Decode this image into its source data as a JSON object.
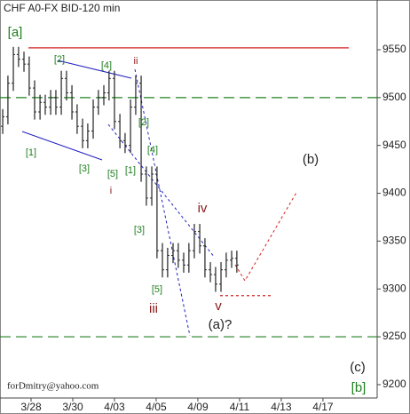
{
  "chart_data": {
    "type": "ohlc",
    "title": "CHF A0-FX BID-120 min",
    "footer": "forDmitry@yahoo.com",
    "color": "#222222",
    "xlim": [
      -1.49,
      16.6
    ],
    "xticks": [
      {
        "value": 0,
        "label": "3/28"
      },
      {
        "value": 2,
        "label": "3/30"
      },
      {
        "value": 4,
        "label": "4/03"
      },
      {
        "value": 6,
        "label": "4/05"
      },
      {
        "value": 8,
        "label": "4/09"
      },
      {
        "value": 10,
        "label": "4/11"
      },
      {
        "value": 12,
        "label": "4/13"
      },
      {
        "value": 14,
        "label": "4/17"
      }
    ],
    "ylim": [
      9186,
      9602
    ],
    "yticks": [
      9200,
      9250,
      9300,
      9350,
      9400,
      9450,
      9500,
      9550
    ],
    "x": [
      -1.36,
      -1.11,
      -0.85,
      -0.6,
      -0.34,
      -0.09,
      0.17,
      0.43,
      0.68,
      0.94,
      1.19,
      1.45,
      1.7,
      1.96,
      2.21,
      2.47,
      2.72,
      2.98,
      3.23,
      3.49,
      3.74,
      4.0,
      4.26,
      4.51,
      4.77,
      5.02,
      5.28,
      5.53,
      5.79,
      6.04,
      6.3,
      6.55,
      6.81,
      7.06,
      7.32,
      7.57,
      7.83,
      8.09,
      8.34,
      8.6,
      8.85,
      9.11,
      9.36,
      9.62,
      9.87
    ],
    "open": [
      9470,
      9480,
      9515,
      9545,
      9540,
      9535,
      9510,
      9485,
      9495,
      9490,
      9500,
      9490,
      9520,
      9505,
      9485,
      9470,
      9455,
      9465,
      9490,
      9500,
      9505,
      9520,
      9475,
      9455,
      9450,
      9490,
      9515,
      9420,
      9395,
      9420,
      9340,
      9320,
      9335,
      9340,
      9330,
      9325,
      9340,
      9360,
      9345,
      9320,
      9315,
      9305,
      9320,
      9330,
      9332
    ],
    "high": [
      9488,
      9523,
      9553,
      9553,
      9548,
      9543,
      9518,
      9503,
      9503,
      9508,
      9508,
      9528,
      9528,
      9513,
      9493,
      9478,
      9473,
      9498,
      9508,
      9513,
      9528,
      9528,
      9483,
      9463,
      9498,
      9523,
      9523,
      9428,
      9428,
      9428,
      9348,
      9343,
      9348,
      9348,
      9338,
      9348,
      9368,
      9368,
      9353,
      9328,
      9323,
      9328,
      9338,
      9340,
      9340
    ],
    "low": [
      9462,
      9472,
      9507,
      9532,
      9527,
      9502,
      9477,
      9477,
      9482,
      9482,
      9482,
      9482,
      9497,
      9477,
      9462,
      9447,
      9447,
      9457,
      9482,
      9492,
      9497,
      9467,
      9447,
      9442,
      9442,
      9482,
      9412,
      9387,
      9387,
      9332,
      9312,
      9312,
      9327,
      9322,
      9317,
      9317,
      9332,
      9337,
      9312,
      9307,
      9297,
      9297,
      9312,
      9322,
      9317
    ],
    "close": [
      9480,
      9515,
      9545,
      9540,
      9535,
      9510,
      9485,
      9495,
      9490,
      9500,
      9490,
      9520,
      9505,
      9485,
      9470,
      9455,
      9465,
      9490,
      9500,
      9505,
      9520,
      9475,
      9455,
      9450,
      9490,
      9515,
      9420,
      9395,
      9420,
      9340,
      9320,
      9335,
      9340,
      9330,
      9325,
      9340,
      9360,
      9345,
      9320,
      9315,
      9305,
      9320,
      9330,
      9332,
      9325
    ],
    "levels": [
      {
        "value": 9552,
        "color": "#d22020",
        "dashed": false
      },
      {
        "value": 9500,
        "color": "#208020",
        "dashed": true
      },
      {
        "value": 9250,
        "color": "#208020",
        "dashed": true
      },
      {
        "value": 9293,
        "color": "#d22020",
        "dashed": true
      }
    ],
    "annotations": [
      {
        "text": "[a]",
        "color": "#208020"
      },
      {
        "text": "[2]",
        "color": "#208020"
      },
      {
        "text": "[4]",
        "color": "#208020"
      },
      {
        "text": "[1]",
        "color": "#208020"
      },
      {
        "text": "[3]",
        "color": "#208020"
      },
      {
        "text": "ii",
        "color": "#8b1a1a"
      },
      {
        "text": "[2]",
        "color": "#208020"
      },
      {
        "text": "[4]",
        "color": "#208020"
      },
      {
        "text": "[5]",
        "color": "#208020"
      },
      {
        "text": "[1]",
        "color": "#208020"
      },
      {
        "text": "i",
        "color": "#8b1a1a"
      },
      {
        "text": "[3]",
        "color": "#208020"
      },
      {
        "text": "[5]",
        "color": "#208020"
      },
      {
        "text": "iii",
        "color": "#8b1a1a"
      },
      {
        "text": "iv",
        "color": "#8b1a1a"
      },
      {
        "text": "v",
        "color": "#8b1a1a"
      },
      {
        "text": "(a)?",
        "color": "#222222"
      },
      {
        "text": "(b)",
        "color": "#222222"
      },
      {
        "text": "(c)",
        "color": "#222222"
      },
      {
        "text": "[b]",
        "color": "#208020"
      }
    ]
  }
}
